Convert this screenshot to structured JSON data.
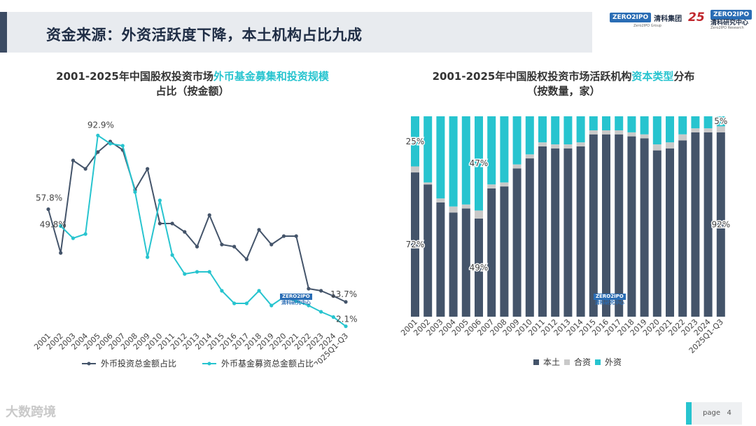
{
  "page": {
    "title": "资金来源：外资活跃度下降，本土机构占比九成",
    "page_label": "page",
    "page_number": "4",
    "watermark": "大数跨境"
  },
  "logos": {
    "zero2ipo_box": "ZERO2IPO",
    "group_name": "清科集团",
    "group_sub": "Zero2IPO Group",
    "anniv": "25",
    "research_box": "ZERO2IPO",
    "research_name": "清科研究中心",
    "research_sub": "Zero2IPO Research"
  },
  "chart_data": [
    {
      "type": "line",
      "title_part1": "2001-2025年中国股权投资市场",
      "title_highlight": "外币基金募集和投资规模",
      "title_part2": "占比（按金额）",
      "categories": [
        "2001",
        "2002",
        "2003",
        "2004",
        "2005",
        "2006",
        "2007",
        "2008",
        "2009",
        "2010",
        "2011",
        "2012",
        "2013",
        "2014",
        "2015",
        "2016",
        "2017",
        "2018",
        "2019",
        "2020",
        "2021",
        "2022",
        "2023",
        "2024",
        "2025Q1-Q3"
      ],
      "series": [
        {
          "name": "外币投资总金额占比",
          "color": "#44546a",
          "values": [
            57.8,
            37,
            81,
            77,
            85,
            90,
            86,
            67,
            77,
            51,
            51,
            47,
            40,
            55,
            41,
            40,
            34,
            48,
            41,
            45,
            45,
            20,
            19,
            16.5,
            13.7
          ]
        },
        {
          "name": "外币基金募资总金额占比",
          "color": "#27c4cf",
          "values": [
            null,
            49.8,
            44,
            46,
            92.9,
            89,
            88,
            66,
            35,
            62,
            36,
            27,
            28,
            28,
            19,
            13,
            13,
            19,
            12,
            16,
            14,
            12,
            9,
            6.5,
            2.1
          ]
        }
      ],
      "annotations": [
        {
          "text": "57.8%",
          "series": 0,
          "index": 0
        },
        {
          "text": "49.8%",
          "series": 1,
          "index": 1
        },
        {
          "text": "92.9%",
          "series": 1,
          "index": 4
        },
        {
          "text": "13.7%",
          "series": 0,
          "index": 24
        },
        {
          "text": "2.1%",
          "series": 1,
          "index": 24
        }
      ],
      "ylim": [
        0,
        100
      ]
    },
    {
      "type": "bar",
      "stacked": true,
      "title_part1": "2001-2025年中国股权投资市场活跃机构",
      "title_highlight": "资本类型",
      "title_part2": "分布",
      "subtitle": "（按数量，家）",
      "categories": [
        "2001",
        "2002",
        "2003",
        "2004",
        "2005",
        "2006",
        "2007",
        "2008",
        "2009",
        "2010",
        "2011",
        "2012",
        "2013",
        "2014",
        "2015",
        "2016",
        "2017",
        "2018",
        "2019",
        "2020",
        "2021",
        "2022",
        "2023",
        "2024",
        "2025Q1-Q3"
      ],
      "series": [
        {
          "name": "本土",
          "color": "#44546a",
          "values": [
            72,
            66,
            57,
            52,
            54,
            49,
            64,
            65,
            74,
            79,
            85,
            84,
            84,
            85,
            91,
            91,
            91,
            90,
            89,
            83,
            84,
            88,
            92,
            92,
            92
          ]
        },
        {
          "name": "合资",
          "color": "#c9c9c9",
          "values": [
            3,
            1,
            2,
            3,
            2,
            4,
            2,
            2,
            2,
            2,
            2,
            2,
            2,
            2,
            2,
            2,
            2,
            2,
            2,
            3,
            3,
            3,
            2,
            2,
            3
          ]
        },
        {
          "name": "外资",
          "color": "#27c4cf",
          "values": [
            25,
            33,
            41,
            45,
            44,
            47,
            34,
            33,
            24,
            19,
            13,
            14,
            14,
            13,
            7,
            7,
            7,
            8,
            9,
            14,
            13,
            9,
            6,
            6,
            5
          ]
        }
      ],
      "annotations": [
        {
          "text": "25%",
          "series": 2,
          "index": 0
        },
        {
          "text": "72%",
          "series": 0,
          "index": 0
        },
        {
          "text": "47%",
          "series": 2,
          "index": 5
        },
        {
          "text": "49%",
          "series": 0,
          "index": 5
        },
        {
          "text": "5%",
          "series": 2,
          "index": 24
        },
        {
          "text": "92%",
          "series": 0,
          "index": 24
        }
      ],
      "ylim": [
        0,
        100
      ]
    }
  ]
}
